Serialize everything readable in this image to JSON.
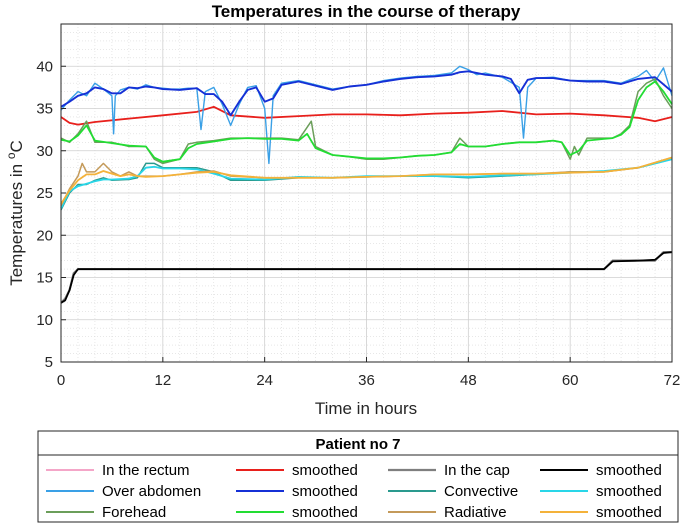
{
  "chart_data": {
    "type": "line",
    "title": "Temperatures in the course of therapy",
    "xlabel": "Time in hours",
    "ylabel_main": "Temperatures in ",
    "ylabel_sup": "o",
    "ylabel_unit": "C",
    "xlim": [
      0,
      72
    ],
    "ylim": [
      5,
      45
    ],
    "xticks": [
      0,
      12,
      24,
      36,
      48,
      60,
      72
    ],
    "yticks": [
      5,
      10,
      15,
      20,
      25,
      30,
      35,
      40
    ],
    "grid": true,
    "minor_grid": true,
    "legend_title": "Patient no 7",
    "legend_position": "bottom",
    "series": [
      {
        "name": "In the rectum",
        "color": "#f4a6c8",
        "width": 1.2,
        "x": [
          0,
          1,
          2,
          4,
          8,
          12,
          16,
          18,
          20,
          24,
          28,
          32,
          36,
          40,
          44,
          48,
          52,
          56,
          60,
          64,
          68,
          70,
          72
        ],
        "y": [
          34,
          33.3,
          33.1,
          33.4,
          33.8,
          34.2,
          34.6,
          35.2,
          34.2,
          33.9,
          34.1,
          34.3,
          34.3,
          34.2,
          34.4,
          34.5,
          34.7,
          34.3,
          34.4,
          34.2,
          33.9,
          33.5,
          34
        ]
      },
      {
        "name": "smoothed",
        "color": "#e8201c",
        "width": 1.8,
        "x": [
          0,
          1,
          2,
          4,
          8,
          12,
          16,
          18,
          20,
          24,
          28,
          32,
          36,
          40,
          44,
          48,
          52,
          56,
          60,
          64,
          68,
          70,
          72
        ],
        "y": [
          34,
          33.3,
          33.1,
          33.4,
          33.8,
          34.2,
          34.6,
          35.2,
          34.2,
          33.9,
          34.1,
          34.3,
          34.3,
          34.2,
          34.4,
          34.5,
          34.7,
          34.3,
          34.4,
          34.2,
          33.9,
          33.5,
          34
        ]
      },
      {
        "name": "In the cap",
        "color": "#7f7f7f",
        "width": 2.2,
        "x": [
          0,
          0.5,
          1,
          1.5,
          2,
          4,
          12,
          24,
          36,
          48,
          60,
          64,
          65,
          68,
          70,
          71,
          72
        ],
        "y": [
          12,
          12.5,
          13.5,
          15.5,
          16,
          16,
          16,
          16,
          16,
          16,
          16,
          16,
          17,
          17,
          17,
          18,
          18
        ]
      },
      {
        "name": "smoothed",
        "color": "#000000",
        "width": 1.8,
        "x": [
          0,
          0.5,
          1,
          1.5,
          2,
          4,
          12,
          24,
          36,
          48,
          60,
          64,
          65,
          68,
          70,
          71,
          72
        ],
        "y": [
          12,
          12.3,
          13.5,
          15.3,
          16,
          16,
          16,
          16,
          16,
          16,
          16,
          16,
          16.9,
          17,
          17.1,
          17.9,
          18
        ]
      },
      {
        "name": "Over abdomen",
        "color": "#3aa0e6",
        "width": 1.4,
        "x": [
          0,
          1,
          2,
          3,
          4,
          5,
          6,
          6.2,
          6.4,
          7,
          8,
          9,
          10,
          11,
          12,
          13,
          14,
          15,
          16,
          16.5,
          17,
          18,
          19,
          20,
          21,
          22,
          23,
          24,
          24.5,
          25,
          26,
          28,
          30,
          32,
          34,
          36,
          38,
          40,
          42,
          44,
          46,
          47,
          48,
          49,
          50,
          52,
          54,
          54.5,
          55,
          56,
          58,
          60,
          62,
          64,
          66,
          68,
          69,
          70,
          71,
          72
        ],
        "y": [
          34.8,
          36,
          37,
          36.5,
          38,
          37.3,
          36.5,
          32,
          36.5,
          37.2,
          37.5,
          37.3,
          37.8,
          37.5,
          37.4,
          37.3,
          37.3,
          37.4,
          37.4,
          32.5,
          37,
          37.5,
          35.5,
          33,
          35.5,
          37.5,
          37.7,
          35,
          28.5,
          36.5,
          38,
          38.3,
          37.8,
          37.3,
          37.6,
          37.8,
          38.3,
          38.6,
          38.8,
          38.9,
          39.2,
          40,
          39.6,
          39,
          39.2,
          38.7,
          37.5,
          31.5,
          37.5,
          38.6,
          38.7,
          38.3,
          38.3,
          38.3,
          38,
          38.8,
          39.5,
          38.2,
          39.8,
          36.5
        ]
      },
      {
        "name": "smoothed",
        "color": "#1530d6",
        "width": 1.9,
        "x": [
          0,
          1,
          2,
          3,
          4,
          5,
          6,
          7,
          8,
          9,
          10,
          11,
          12,
          14,
          16,
          17,
          18,
          19,
          20,
          21,
          22,
          23,
          24,
          25,
          26,
          28,
          30,
          32,
          34,
          36,
          38,
          40,
          42,
          44,
          46,
          47,
          48,
          50,
          52,
          53,
          54,
          55,
          56,
          58,
          60,
          62,
          64,
          66,
          68,
          70,
          72
        ],
        "y": [
          35.2,
          35.8,
          36.5,
          36.8,
          37.5,
          37.3,
          36.8,
          36.8,
          37.5,
          37.4,
          37.6,
          37.5,
          37.3,
          37.2,
          37.4,
          36.7,
          36.7,
          35.8,
          34.2,
          35.8,
          37.2,
          37.5,
          35.8,
          36.2,
          37.8,
          38.2,
          37.7,
          37.2,
          37.6,
          37.8,
          38.2,
          38.5,
          38.7,
          38.8,
          39,
          39.3,
          39.4,
          39,
          38.8,
          38.5,
          36.8,
          38.4,
          38.6,
          38.6,
          38.3,
          38.2,
          38.2,
          37.9,
          38.5,
          38.7,
          37
        ]
      },
      {
        "name": "Convective",
        "color": "#2a9a8e",
        "width": 1.5,
        "x": [
          0,
          1,
          2,
          3,
          4,
          5,
          6,
          8,
          9,
          10,
          11,
          12,
          14,
          16,
          18,
          20,
          24,
          28,
          32,
          36,
          40,
          44,
          48,
          52,
          56,
          60,
          64,
          68,
          72
        ],
        "y": [
          23,
          25,
          26,
          26,
          26.5,
          26.8,
          26.5,
          26.6,
          26.8,
          28.5,
          28.5,
          28,
          28,
          28,
          27.5,
          26.5,
          26.5,
          26.8,
          26.8,
          26.9,
          27,
          27,
          26.8,
          27,
          27.2,
          27.5,
          27.5,
          28,
          29
        ]
      },
      {
        "name": "smoothed",
        "color": "#29d6e8",
        "width": 1.8,
        "x": [
          0,
          1,
          2,
          3,
          4,
          5,
          6,
          8,
          9,
          10,
          11,
          12,
          14,
          16,
          18,
          20,
          24,
          28,
          32,
          36,
          40,
          44,
          48,
          52,
          56,
          60,
          64,
          68,
          72
        ],
        "y": [
          23.2,
          25.2,
          25.8,
          26.1,
          26.4,
          26.6,
          26.6,
          26.7,
          27,
          28,
          28.1,
          27.9,
          27.9,
          27.8,
          27.3,
          26.7,
          26.6,
          26.9,
          26.8,
          27,
          27,
          27,
          26.9,
          27.1,
          27.2,
          27.4,
          27.6,
          28,
          29
        ]
      },
      {
        "name": "Forehead",
        "color": "#6b9e5a",
        "width": 1.5,
        "x": [
          0,
          1,
          2,
          3,
          4,
          6,
          8,
          10,
          11,
          12,
          14,
          15,
          16,
          18,
          20,
          22,
          24,
          26,
          28,
          29.5,
          30,
          32,
          34,
          36,
          38,
          40,
          42,
          44,
          46,
          47,
          48,
          50,
          52,
          54,
          56,
          58,
          59,
          60,
          60.5,
          61,
          62,
          64,
          65,
          66,
          67,
          68,
          69,
          70,
          71,
          72
        ],
        "y": [
          31.5,
          31,
          32,
          33.5,
          31,
          31,
          30.5,
          30.5,
          29,
          28.5,
          29,
          30.8,
          31,
          31.2,
          31.5,
          31.5,
          31.5,
          31.5,
          31.3,
          33.5,
          30.5,
          29.5,
          29.3,
          29,
          29,
          29.2,
          29.4,
          29.5,
          29.8,
          31.5,
          30.5,
          30.5,
          30.8,
          31,
          31,
          31.2,
          31,
          29,
          30.5,
          29.5,
          31.5,
          31.5,
          31.5,
          32,
          33,
          37,
          38,
          38.5,
          36.5,
          35
        ]
      },
      {
        "name": "smoothed",
        "color": "#22dd33",
        "width": 1.8,
        "x": [
          0,
          1,
          2,
          3,
          4,
          6,
          8,
          10,
          11,
          12,
          14,
          15,
          16,
          18,
          20,
          22,
          24,
          26,
          28,
          29,
          30,
          32,
          34,
          36,
          38,
          40,
          42,
          44,
          46,
          47,
          48,
          50,
          52,
          54,
          56,
          58,
          59,
          60,
          61,
          62,
          64,
          65,
          66,
          67,
          68,
          69,
          70,
          71,
          72
        ],
        "y": [
          31.3,
          31.1,
          31.8,
          33,
          31.2,
          30.9,
          30.6,
          30.5,
          29.2,
          28.7,
          29,
          30.3,
          30.8,
          31.1,
          31.4,
          31.5,
          31.4,
          31.4,
          31.2,
          32,
          30.3,
          29.5,
          29.3,
          29.1,
          29.1,
          29.2,
          29.4,
          29.5,
          29.8,
          30.8,
          30.5,
          30.5,
          30.8,
          31,
          31,
          31.2,
          31,
          29.5,
          30,
          31.2,
          31.4,
          31.5,
          31.9,
          32.8,
          36,
          37.5,
          38.2,
          37,
          35.5
        ]
      },
      {
        "name": "Radiative",
        "color": "#c49a5a",
        "width": 1.5,
        "x": [
          0,
          1,
          2,
          2.5,
          3,
          4,
          5,
          6,
          7,
          8,
          9,
          10,
          12,
          14,
          16,
          18,
          20,
          24,
          28,
          32,
          36,
          40,
          44,
          48,
          52,
          56,
          60,
          64,
          68,
          72
        ],
        "y": [
          23.5,
          25.5,
          27,
          28.5,
          27.5,
          27.5,
          28.5,
          27.5,
          27,
          27.5,
          27,
          27,
          27,
          27.2,
          27.5,
          27.6,
          27,
          26.8,
          26.8,
          26.8,
          26.9,
          27,
          27.2,
          27.2,
          27.3,
          27.3,
          27.5,
          27.5,
          28,
          29.2
        ]
      },
      {
        "name": "smoothed",
        "color": "#f4b23a",
        "width": 1.8,
        "x": [
          0,
          1,
          2,
          3,
          4,
          5,
          6,
          7,
          8,
          9,
          10,
          12,
          14,
          16,
          18,
          20,
          24,
          28,
          32,
          36,
          40,
          44,
          48,
          52,
          56,
          60,
          64,
          68,
          72
        ],
        "y": [
          23.7,
          25.3,
          26.5,
          27.2,
          27.2,
          27.6,
          27.3,
          27,
          27.2,
          27,
          26.9,
          27,
          27.2,
          27.4,
          27.5,
          27.1,
          26.8,
          26.8,
          26.8,
          26.9,
          27,
          27.2,
          27.2,
          27.3,
          27.3,
          27.4,
          27.5,
          28,
          29.2
        ]
      }
    ],
    "legend_rows": [
      [
        0,
        1,
        2,
        3
      ],
      [
        4,
        5,
        6,
        7
      ],
      [
        8,
        9,
        10,
        11
      ]
    ]
  }
}
